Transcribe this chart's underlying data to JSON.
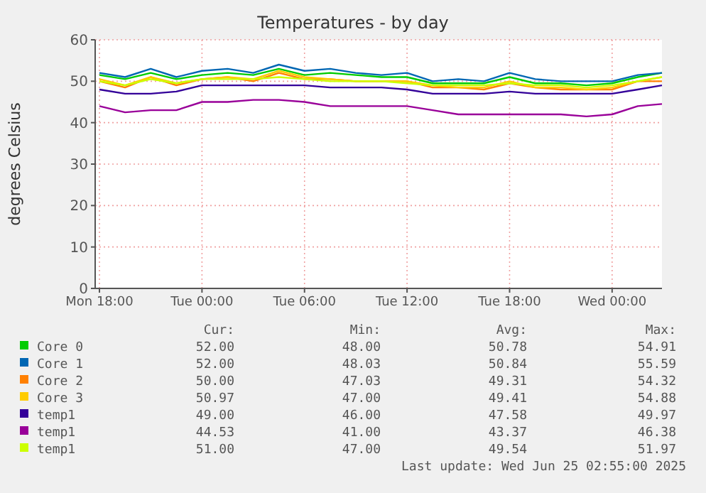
{
  "chart_data": {
    "type": "line",
    "title": "Temperatures - by day",
    "ylabel": "degrees Celsius",
    "x": [
      "2025-06-23T18:00",
      "2025-06-23T19:30",
      "2025-06-23T21:00",
      "2025-06-23T22:30",
      "2025-06-24T00:00",
      "2025-06-24T01:30",
      "2025-06-24T03:00",
      "2025-06-24T04:30",
      "2025-06-24T06:00",
      "2025-06-24T07:30",
      "2025-06-24T09:00",
      "2025-06-24T10:30",
      "2025-06-24T12:00",
      "2025-06-24T13:30",
      "2025-06-24T15:00",
      "2025-06-24T16:30",
      "2025-06-24T18:00",
      "2025-06-24T19:30",
      "2025-06-24T21:00",
      "2025-06-24T22:30",
      "2025-06-25T00:00",
      "2025-06-25T01:30",
      "2025-06-25T02:55"
    ],
    "xlim": [
      "2025-06-23T17:45",
      "2025-06-25T02:55"
    ],
    "xticks": [
      {
        "value": "2025-06-23T18:00",
        "label": "Mon 18:00"
      },
      {
        "value": "2025-06-24T00:00",
        "label": "Tue 00:00"
      },
      {
        "value": "2025-06-24T06:00",
        "label": "Tue 06:00"
      },
      {
        "value": "2025-06-24T12:00",
        "label": "Tue 12:00"
      },
      {
        "value": "2025-06-24T18:00",
        "label": "Tue 18:00"
      },
      {
        "value": "2025-06-25T00:00",
        "label": "Wed 00:00"
      }
    ],
    "ylim": [
      0,
      60
    ],
    "yticks": [
      0,
      10,
      20,
      30,
      40,
      50,
      60
    ],
    "grid": true,
    "legend": "bottom",
    "marker": "none",
    "line_style": "solid",
    "series": [
      {
        "name": "Core 0",
        "color": "#00cc00",
        "values": [
          51.5,
          50.5,
          52,
          50.5,
          51.5,
          52,
          51.5,
          53,
          51.5,
          52,
          51.5,
          51,
          51,
          49.5,
          49.5,
          49.5,
          51,
          49.5,
          49.5,
          49,
          49.5,
          51,
          52
        ]
      },
      {
        "name": "Core 1",
        "color": "#0066b3",
        "values": [
          52,
          51,
          53,
          51,
          52.5,
          53,
          52,
          54,
          52.5,
          53,
          52,
          51.5,
          52,
          50,
          50.5,
          50,
          52,
          50.5,
          50,
          50,
          50,
          51.5,
          52
        ]
      },
      {
        "name": "Core 2",
        "color": "#ff8000",
        "values": [
          50,
          48.5,
          51,
          49,
          50.5,
          51,
          50,
          52,
          50.5,
          50.5,
          50,
          50,
          50,
          48.5,
          48.5,
          48,
          49.5,
          48.5,
          48,
          48,
          48,
          50,
          50
        ]
      },
      {
        "name": "Core 3",
        "color": "#ffcc00",
        "values": [
          50.5,
          49,
          51,
          49.5,
          50.5,
          51,
          50.5,
          52.5,
          51,
          50.5,
          50,
          50,
          50,
          49,
          48.5,
          48.5,
          50,
          48.5,
          48.5,
          48,
          48.5,
          50,
          51
        ]
      },
      {
        "name": "temp1",
        "color": "#330099",
        "values": [
          48,
          47,
          47,
          47.5,
          49,
          49,
          49,
          49,
          49,
          48.5,
          48.5,
          48.5,
          48,
          47,
          47,
          47,
          47.5,
          47,
          47,
          47,
          47,
          48,
          49
        ]
      },
      {
        "name": "temp1",
        "color": "#990099",
        "values": [
          44,
          42.5,
          43,
          43,
          45,
          45,
          45.5,
          45.5,
          45,
          44,
          44,
          44,
          44,
          43,
          42,
          42,
          42,
          42,
          42,
          41.5,
          42,
          44,
          44.5
        ]
      },
      {
        "name": "temp1",
        "color": "#ccff00",
        "values": [
          50,
          49,
          50.5,
          49.5,
          50.5,
          50.5,
          50.5,
          51,
          50.5,
          50,
          50,
          50,
          49.5,
          49,
          49,
          49,
          49.5,
          49,
          49,
          48.5,
          49,
          50,
          51
        ]
      }
    ],
    "annotations": [
      "Cur:",
      "Min:",
      "Avg:",
      "Max:",
      "52.00",
      "48.00",
      "50.78",
      "54.91",
      "52.00",
      "48.03",
      "50.84",
      "55.59",
      "50.00",
      "47.03",
      "49.31",
      "54.32",
      "50.97",
      "47.00",
      "49.41",
      "54.88",
      "49.00",
      "46.00",
      "47.58",
      "49.97",
      "44.53",
      "41.00",
      "43.37",
      "46.38",
      "51.00",
      "47.00",
      "49.54",
      "51.97",
      "Last update: Wed Jun 25 02:55:00 2025"
    ]
  }
}
